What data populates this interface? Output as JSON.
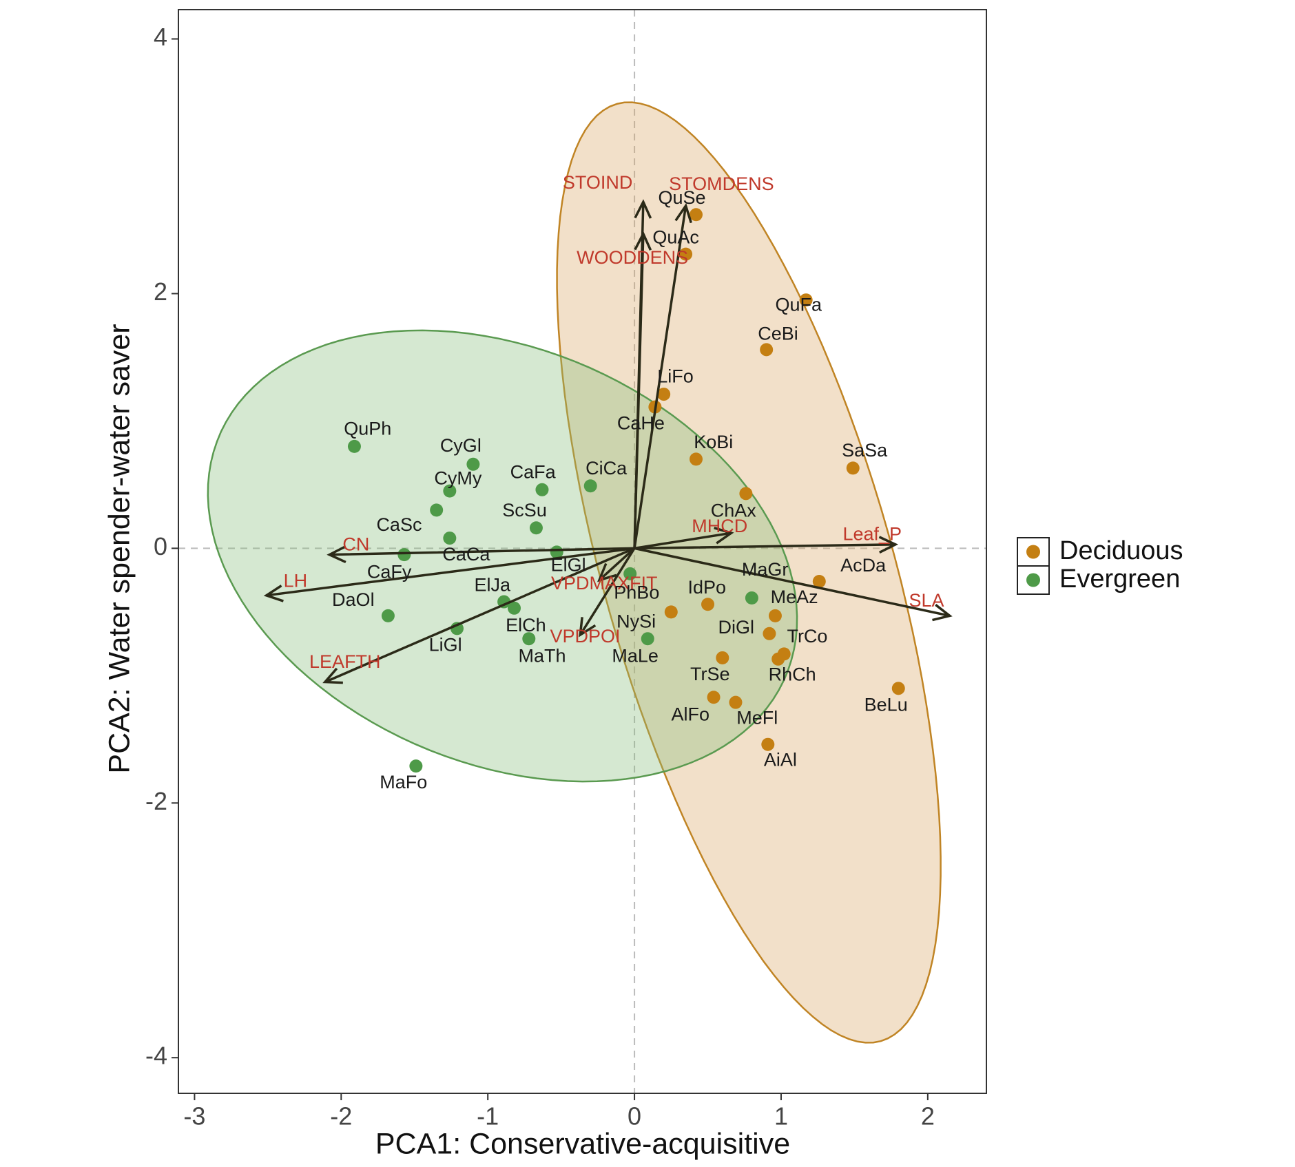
{
  "chart_data": {
    "type": "scatter",
    "xlabel": "PCA1: Conservative-acquisitive",
    "ylabel": "PCA2: Water spender-water saver",
    "xlim": [
      -3.11,
      2.4
    ],
    "ylim": [
      -4.28,
      4.23
    ],
    "xticks": [
      -3,
      -2,
      -1,
      0,
      1,
      2
    ],
    "yticks": [
      -4,
      -2,
      0,
      2,
      4
    ],
    "series": [
      {
        "name": "Deciduous",
        "color": "#c47f12",
        "fill": "#dba663",
        "stroke": "#c08424",
        "labels": [
          "QuSe",
          "QuAc",
          "QuFa",
          "CeBi",
          "LiFo",
          "CaHe",
          "KoBi",
          "SaSa",
          "ChAx",
          "AcDa",
          "IdPo",
          "MeAz",
          "NySi",
          "DiGl",
          "TrCo",
          "RhCh",
          "TrSe",
          "AlFo",
          "MeFl",
          "AiAl",
          "BeLu"
        ],
        "x": [
          0.42,
          0.35,
          1.17,
          0.9,
          0.2,
          0.14,
          0.42,
          1.49,
          0.76,
          1.26,
          0.5,
          0.96,
          0.25,
          0.92,
          1.02,
          0.98,
          0.6,
          0.54,
          0.69,
          0.91,
          1.8
        ],
        "y": [
          2.62,
          2.31,
          1.95,
          1.56,
          1.21,
          1.11,
          0.7,
          0.63,
          0.43,
          -0.26,
          -0.44,
          -0.53,
          -0.5,
          -0.67,
          -0.83,
          -0.87,
          -0.86,
          -1.17,
          -1.21,
          -1.54,
          -1.1
        ],
        "ellipse": {
          "center": [
            0.78,
            -0.19
          ],
          "axis1": [
            -0.9,
            3.68
          ],
          "axis2": [
            0.95,
            0.31
          ]
        }
      },
      {
        "name": "Evergreen",
        "color": "#4e9a48",
        "fill": "#86bd7c",
        "stroke": "#5a9a50",
        "labels": [
          "QuPh",
          "CyGl",
          "CyMy",
          "CaFa",
          "CiCa",
          "CaSc",
          "ScSu",
          "CaCa",
          "CaFy",
          "ElGl",
          "PhBo",
          "MaGr",
          "ElJa",
          "ElCh",
          "DaOl",
          "LiGl",
          "MaTh",
          "MaLe",
          "MaFo"
        ],
        "x": [
          -1.91,
          -1.1,
          -1.26,
          -0.63,
          -0.3,
          -1.35,
          -0.67,
          -1.26,
          -1.57,
          -0.53,
          -0.03,
          0.8,
          -0.89,
          -0.82,
          -1.68,
          -1.21,
          -0.72,
          0.09,
          -1.49
        ],
        "y": [
          0.8,
          0.66,
          0.45,
          0.46,
          0.49,
          0.3,
          0.16,
          0.08,
          -0.05,
          -0.03,
          -0.2,
          -0.39,
          -0.42,
          -0.47,
          -0.53,
          -0.63,
          -0.71,
          -0.71,
          -1.71
        ],
        "ellipse": {
          "center": [
            -0.9,
            -0.06
          ],
          "axis1": [
            1.98,
            -0.2
          ],
          "axis2": [
            -0.34,
            1.76
          ]
        }
      }
    ],
    "vectors": {
      "color": "#c0392b",
      "line_color": "#2b2a18",
      "labels": [
        "STOIND",
        "STOMDENS",
        "WOODDENS",
        "MHCD",
        "Leaf_P",
        "SLA",
        "CN",
        "LH",
        "LEAFTH",
        "VPDMAXFIT",
        "VPDPOI"
      ],
      "x": [
        0.06,
        0.35,
        0.06,
        0.66,
        1.78,
        2.15,
        -2.08,
        -2.51,
        -2.11,
        -0.24,
        -0.37
      ],
      "y": [
        2.72,
        2.69,
        2.47,
        0.12,
        0.03,
        -0.53,
        -0.05,
        -0.37,
        -1.05,
        -0.25,
        -0.68
      ]
    }
  }
}
